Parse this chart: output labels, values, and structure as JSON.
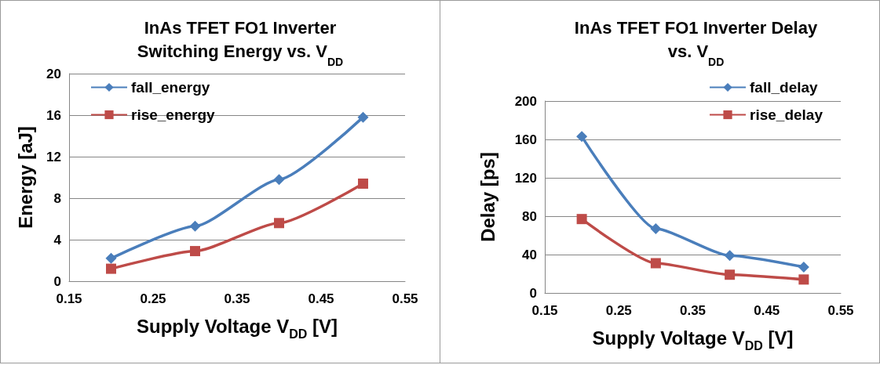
{
  "chart_data": [
    {
      "type": "line",
      "title": "InAs TFET FO1 Inverter\nSwitching Energy vs. V$_{DD}$",
      "xlabel": "Supply Voltage V$_{DD}$ [V]",
      "ylabel": "Energy [aJ]",
      "x": [
        0.2,
        0.3,
        0.4,
        0.5
      ],
      "series": [
        {
          "name": "fall_energy",
          "color": "#4a7ebb",
          "marker": "diamond",
          "values": [
            2.2,
            5.3,
            9.8,
            15.8
          ]
        },
        {
          "name": "rise_energy",
          "color": "#be4b48",
          "marker": "square",
          "values": [
            1.2,
            2.9,
            5.6,
            9.4
          ]
        }
      ],
      "xlim": [
        0.15,
        0.55
      ],
      "xticks": [
        0.15,
        0.25,
        0.35,
        0.45,
        0.55
      ],
      "ylim": [
        0,
        20
      ],
      "yticks": [
        0,
        4,
        8,
        12,
        16,
        20
      ],
      "grid": "y",
      "legend": "top left"
    },
    {
      "type": "line",
      "title": "InAs TFET FO1 Inverter Delay\nvs. V$_{DD}$",
      "xlabel": "Supply Voltage V$_{DD}$ [V]",
      "ylabel": "Delay [ps]",
      "x": [
        0.2,
        0.3,
        0.4,
        0.5
      ],
      "series": [
        {
          "name": "fall_delay",
          "color": "#4a7ebb",
          "marker": "diamond",
          "values": [
            163,
            67,
            39,
            27
          ]
        },
        {
          "name": "rise_delay",
          "color": "#be4b48",
          "marker": "square",
          "values": [
            77,
            31,
            19,
            14
          ]
        }
      ],
      "xlim": [
        0.15,
        0.55
      ],
      "xticks": [
        0.15,
        0.25,
        0.35,
        0.45,
        0.55
      ],
      "ylim": [
        0,
        200
      ],
      "yticks": [
        0,
        40,
        80,
        120,
        160,
        200
      ],
      "grid": "y",
      "legend": "top right"
    }
  ]
}
